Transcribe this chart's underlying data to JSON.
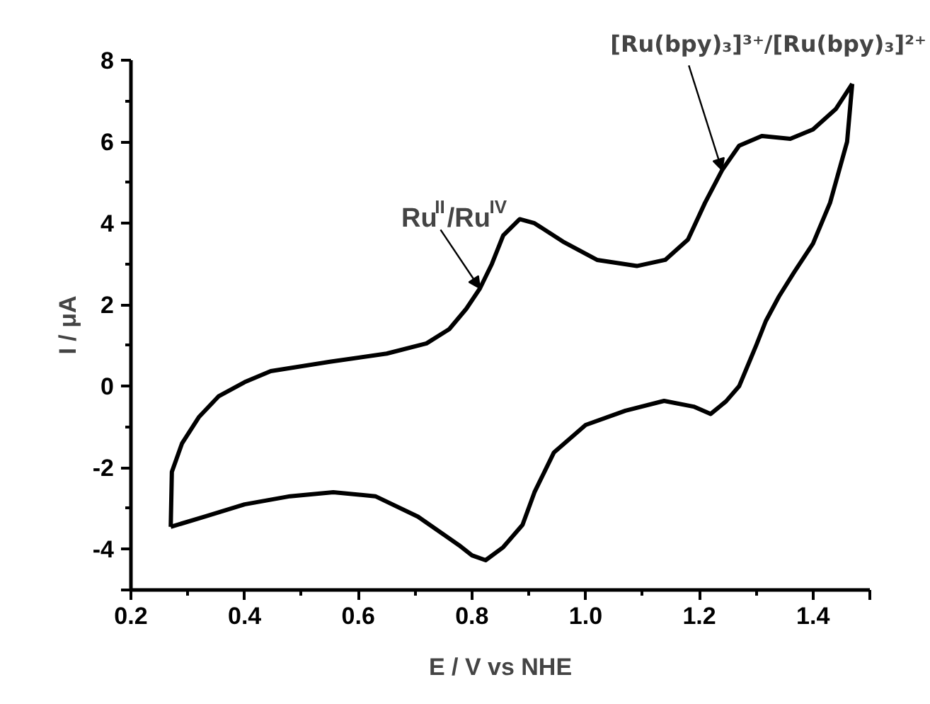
{
  "chart_data": {
    "type": "line",
    "xlabel": "E / V vs NHE",
    "ylabel": "I / μA",
    "xlim": [
      0.2,
      1.5
    ],
    "ylim": [
      -5,
      8
    ],
    "xticks": [
      0.2,
      0.4,
      0.6,
      0.8,
      {
        "value": 1.0,
        "label": "1.0"
      },
      1.2,
      1.4,
      {
        "value": 1.5,
        "label": null
      }
    ],
    "yticks": [
      {
        "value": -5,
        "label": null
      },
      -4,
      -2,
      0,
      2,
      4,
      6,
      8
    ],
    "grid": false,
    "marker": "none",
    "line_style": "solid",
    "series": [
      {
        "color": "#000000",
        "x": [
          0.27,
          0.272,
          0.29,
          0.32,
          0.354,
          0.4,
          0.446,
          0.55,
          0.65,
          0.72,
          0.76,
          0.79,
          0.814,
          0.835,
          0.855,
          0.884,
          0.91,
          0.96,
          1.02,
          1.09,
          1.14,
          1.18,
          1.21,
          1.24,
          1.27,
          1.31,
          1.36,
          1.4,
          1.44,
          1.469
        ],
        "values": [
          -3.45,
          -2.1,
          -1.4,
          -0.75,
          -0.25,
          0.1,
          0.37,
          0.6,
          0.8,
          1.05,
          1.4,
          1.9,
          2.4,
          3.0,
          3.7,
          4.1,
          4.0,
          3.55,
          3.1,
          2.95,
          3.1,
          3.6,
          4.5,
          5.3,
          5.9,
          6.14,
          6.07,
          6.3,
          6.8,
          7.42
        ]
      },
      {
        "color": "#000000",
        "x": [
          1.469,
          1.46,
          1.43,
          1.4,
          1.367,
          1.34,
          1.317,
          1.3,
          1.27,
          1.247,
          1.22,
          1.19,
          1.138,
          1.07,
          1.0,
          0.944,
          0.91,
          0.889,
          0.855,
          0.824,
          0.8,
          0.777,
          0.705,
          0.63,
          0.556,
          0.48,
          0.4,
          0.33,
          0.27
        ],
        "values": [
          7.42,
          6.0,
          4.5,
          3.5,
          2.8,
          2.2,
          1.6,
          1.0,
          0.0,
          -0.37,
          -0.68,
          -0.5,
          -0.36,
          -0.6,
          -0.95,
          -1.63,
          -2.6,
          -3.4,
          -3.95,
          -4.27,
          -4.15,
          -3.9,
          -3.2,
          -2.7,
          -2.6,
          -2.7,
          -2.9,
          -3.2,
          -3.45
        ]
      }
    ],
    "annotations": [
      {
        "text": "Ru$^{II}$/Ru$^{IV}$",
        "x": 0.814,
        "y": 2.4
      },
      {
        "text": "[Ru(bpy)₃]³⁺/[Ru(bpy)₃]²⁺",
        "x": 1.24,
        "y": 5.3
      }
    ]
  }
}
